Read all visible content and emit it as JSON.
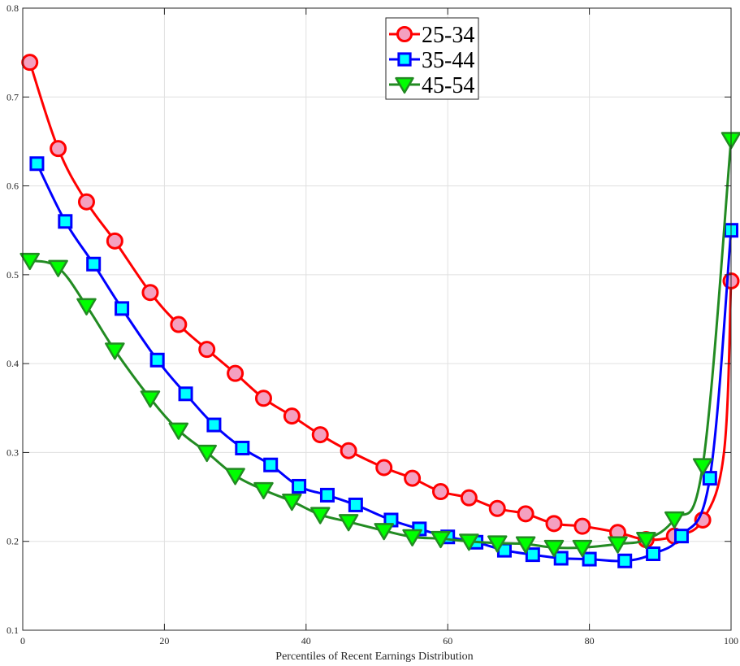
{
  "chart_data": {
    "type": "line",
    "title": "",
    "xlabel": "Percentiles of Recent Earnings Distribution",
    "ylabel": "",
    "xlim": [
      0,
      100
    ],
    "ylim": [
      0.1,
      0.8
    ],
    "xticks": [
      0,
      20,
      40,
      60,
      80,
      100
    ],
    "yticks": [
      0.1,
      0.2,
      0.3,
      0.4,
      0.5,
      0.6,
      0.7,
      0.8
    ],
    "grid": true,
    "legend_position": "upper center",
    "series": [
      {
        "name": "25-34",
        "color": "#ff0000",
        "marker": "circle",
        "marker_fill": "#f4a0c0",
        "x": [
          1,
          5,
          9,
          13,
          18,
          22,
          26,
          30,
          34,
          38,
          42,
          46,
          51,
          55,
          59,
          63,
          67,
          71,
          75,
          79,
          84,
          88,
          92,
          96,
          99,
          100
        ],
        "values": [
          0.739,
          0.642,
          0.582,
          0.538,
          0.48,
          0.444,
          0.416,
          0.389,
          0.361,
          0.341,
          0.32,
          0.302,
          0.283,
          0.271,
          0.256,
          0.249,
          0.237,
          0.231,
          0.22,
          0.217,
          0.21,
          0.202,
          0.206,
          0.224,
          0.3,
          0.493
        ]
      },
      {
        "name": "35-44",
        "color": "#0000ff",
        "marker": "square",
        "marker_fill": "#00ffff",
        "x": [
          2,
          6,
          10,
          14,
          19,
          23,
          27,
          31,
          35,
          39,
          43,
          47,
          52,
          56,
          60,
          64,
          68,
          72,
          76,
          80,
          85,
          89,
          93,
          97,
          100
        ],
        "values": [
          0.625,
          0.56,
          0.512,
          0.462,
          0.404,
          0.366,
          0.331,
          0.305,
          0.286,
          0.262,
          0.252,
          0.241,
          0.224,
          0.214,
          0.205,
          0.199,
          0.19,
          0.185,
          0.181,
          0.18,
          0.178,
          0.186,
          0.206,
          0.271,
          0.55
        ]
      },
      {
        "name": "45-54",
        "color": "#228b22",
        "marker": "triangle-down",
        "marker_fill": "#00ff00",
        "x": [
          1,
          5,
          9,
          13,
          18,
          22,
          26,
          30,
          34,
          38,
          42,
          46,
          51,
          55,
          59,
          63,
          67,
          71,
          75,
          79,
          84,
          88,
          92,
          96,
          100
        ],
        "values": [
          0.516,
          0.508,
          0.465,
          0.415,
          0.361,
          0.325,
          0.3,
          0.274,
          0.258,
          0.245,
          0.23,
          0.222,
          0.212,
          0.205,
          0.203,
          0.2,
          0.198,
          0.197,
          0.193,
          0.193,
          0.197,
          0.202,
          0.225,
          0.285,
          0.652
        ]
      }
    ]
  }
}
